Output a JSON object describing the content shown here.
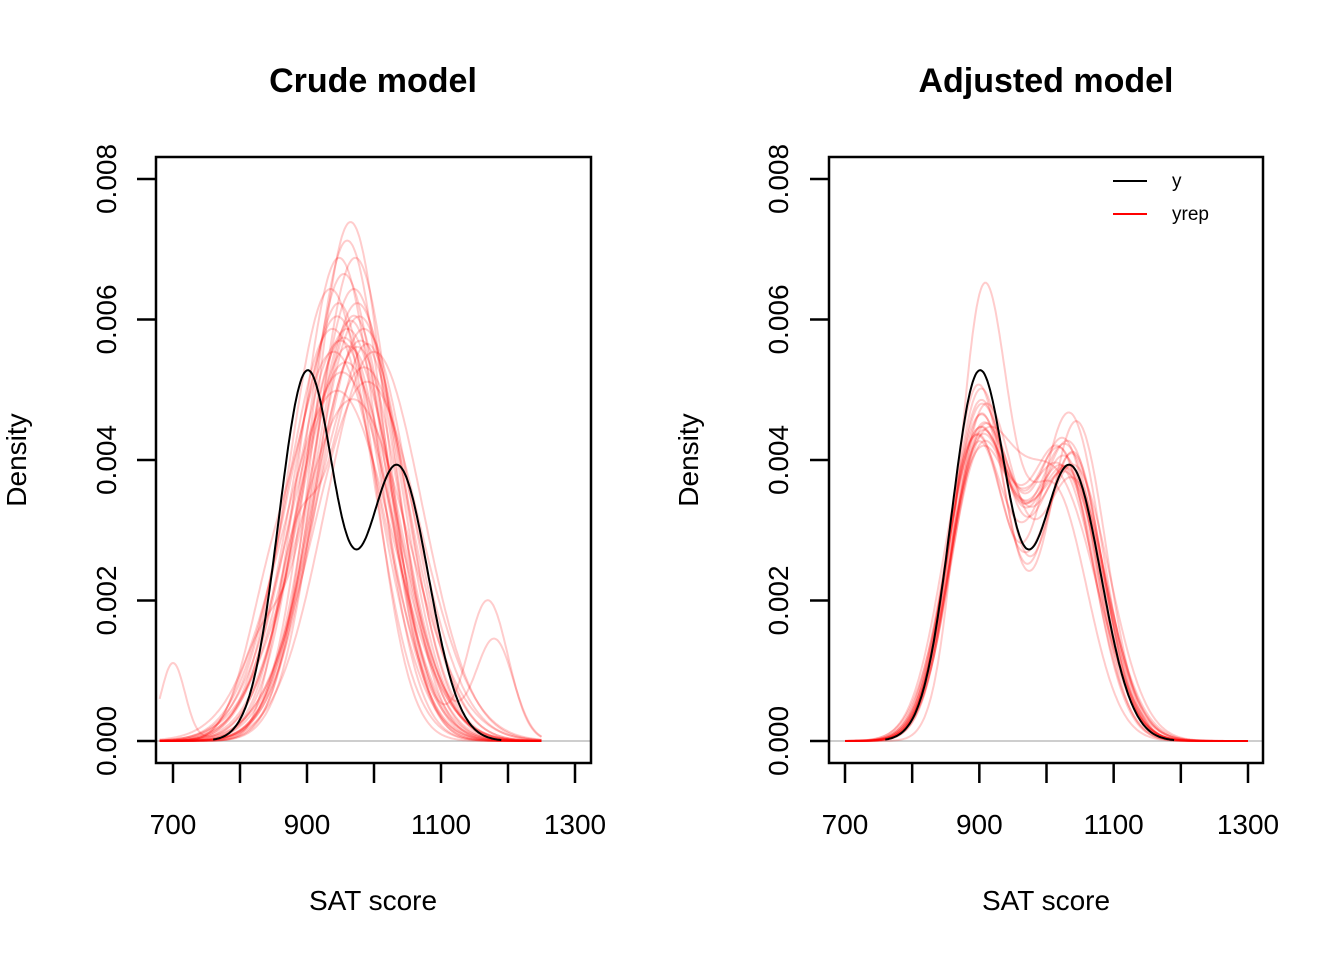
{
  "chart_data": [
    {
      "type": "line",
      "title": "Crude model",
      "xlabel": "SAT score",
      "ylabel": "Density",
      "xlim": [
        675,
        1325
      ],
      "ylim": [
        -0.00032,
        0.00831
      ],
      "xticks": [
        700,
        800,
        900,
        1000,
        1100,
        1200,
        1300
      ],
      "xtick_labels": [
        "700",
        "",
        "900",
        "",
        "1100",
        "",
        "1300"
      ],
      "yticks": [
        0.0,
        0.002,
        0.004,
        0.006,
        0.008
      ],
      "ytick_labels": [
        "0.000",
        "0.002",
        "0.004",
        "0.006",
        "0.008"
      ],
      "baseline": 0,
      "legend": null,
      "observed": {
        "name": "y",
        "color": "#000000",
        "x_range": [
          760,
          1190
        ],
        "components": [
          {
            "weight": 0.55,
            "mean": 900,
            "sd": 42
          },
          {
            "weight": 0.45,
            "mean": 1035,
            "sd": 46
          }
        ],
        "peaks": [
          {
            "x": 900,
            "density": 0.0052
          },
          {
            "x": 1033,
            "density": 0.0039
          }
        ],
        "trough": {
          "x": 973,
          "density": 0.0029
        }
      },
      "replicates": {
        "name": "yrep",
        "color": "#ff0000",
        "opacity": 0.2,
        "x_range": [
          680,
          1250
        ],
        "curves": [
          [
            {
              "w": 1,
              "m": 965,
              "s": 54
            }
          ],
          [
            {
              "w": 1,
              "m": 955,
              "s": 60
            }
          ],
          [
            {
              "w": 1,
              "m": 945,
              "s": 66
            }
          ],
          [
            {
              "w": 1,
              "m": 972,
              "s": 58
            }
          ],
          [
            {
              "w": 1,
              "m": 950,
              "s": 70
            }
          ],
          [
            {
              "w": 1,
              "m": 985,
              "s": 75
            }
          ],
          [
            {
              "w": 1,
              "m": 960,
              "s": 68
            }
          ],
          [
            {
              "w": 1,
              "m": 940,
              "s": 72
            }
          ],
          [
            {
              "w": 1,
              "m": 975,
              "s": 64
            }
          ],
          [
            {
              "w": 1,
              "m": 990,
              "s": 78
            }
          ],
          [
            {
              "w": 0.8,
              "m": 950,
              "s": 52
            },
            {
              "w": 0.2,
              "m": 850,
              "s": 40
            }
          ],
          [
            {
              "w": 0.85,
              "m": 970,
              "s": 56
            },
            {
              "w": 0.15,
              "m": 1170,
              "s": 30
            }
          ],
          [
            {
              "w": 1,
              "m": 958,
              "s": 74
            }
          ],
          [
            {
              "w": 1,
              "m": 935,
              "s": 62
            }
          ],
          [
            {
              "w": 1,
              "m": 980,
              "s": 70
            }
          ],
          [
            {
              "w": 0.9,
              "m": 965,
              "s": 60
            },
            {
              "w": 0.1,
              "m": 830,
              "s": 35
            }
          ],
          [
            {
              "w": 1,
              "m": 945,
              "s": 80
            }
          ],
          [
            {
              "w": 1,
              "m": 1000,
              "s": 72
            }
          ],
          [
            {
              "w": 1,
              "m": 968,
              "s": 82
            }
          ],
          [
            {
              "w": 0.95,
              "m": 955,
              "s": 66
            },
            {
              "w": 0.05,
              "m": 700,
              "s": 18
            }
          ],
          [
            {
              "w": 1,
              "m": 962,
              "s": 71
            }
          ],
          [
            {
              "w": 1,
              "m": 948,
              "s": 58
            }
          ],
          [
            {
              "w": 1,
              "m": 978,
              "s": 66
            }
          ],
          [
            {
              "w": 0.85,
              "m": 990,
              "s": 60
            },
            {
              "w": 0.15,
              "m": 880,
              "s": 30
            }
          ],
          [
            {
              "w": 1,
              "m": 952,
              "s": 76
            }
          ],
          [
            {
              "w": 1,
              "m": 970,
              "s": 62
            }
          ],
          [
            {
              "w": 1,
              "m": 938,
              "s": 68
            }
          ],
          [
            {
              "w": 0.9,
              "m": 975,
              "s": 64
            },
            {
              "w": 0.1,
              "m": 1180,
              "s": 28
            }
          ],
          [
            {
              "w": 1,
              "m": 960,
              "s": 56
            }
          ],
          [
            {
              "w": 1,
              "m": 985,
              "s": 68
            }
          ]
        ]
      }
    },
    {
      "type": "line",
      "title": "Adjusted model",
      "xlabel": "SAT score",
      "ylabel": "Density",
      "xlim": [
        675,
        1325
      ],
      "ylim": [
        -0.00032,
        0.00831
      ],
      "xticks": [
        700,
        800,
        900,
        1000,
        1100,
        1200,
        1300
      ],
      "xtick_labels": [
        "700",
        "",
        "900",
        "",
        "1100",
        "",
        "1300"
      ],
      "yticks": [
        0.0,
        0.002,
        0.004,
        0.006,
        0.008
      ],
      "ytick_labels": [
        "0.000",
        "0.002",
        "0.004",
        "0.006",
        "0.008"
      ],
      "baseline": 0,
      "legend": {
        "position": "top-right",
        "entries": [
          {
            "label": "y",
            "color": "#000000"
          },
          {
            "label": "yrep",
            "color": "#ff0000"
          }
        ]
      },
      "observed": {
        "name": "y",
        "color": "#000000",
        "x_range": [
          760,
          1190
        ],
        "components": [
          {
            "weight": 0.55,
            "mean": 900,
            "sd": 42
          },
          {
            "weight": 0.45,
            "mean": 1035,
            "sd": 46
          }
        ],
        "peaks": [
          {
            "x": 900,
            "density": 0.0052
          },
          {
            "x": 1033,
            "density": 0.0039
          }
        ],
        "trough": {
          "x": 973,
          "density": 0.0029
        }
      },
      "replicates": {
        "name": "yrep",
        "color": "#ff0000",
        "opacity": 0.2,
        "x_range": [
          700,
          1300
        ],
        "curves": [
          [
            {
              "w": 0.55,
              "m": 905,
              "s": 36
            },
            {
              "w": 0.45,
              "m": 1010,
              "s": 50
            }
          ],
          [
            {
              "w": 0.52,
              "m": 900,
              "s": 44
            },
            {
              "w": 0.48,
              "m": 1030,
              "s": 50
            }
          ],
          [
            {
              "w": 0.5,
              "m": 898,
              "s": 45
            },
            {
              "w": 0.5,
              "m": 1025,
              "s": 52
            }
          ],
          [
            {
              "w": 0.55,
              "m": 902,
              "s": 44
            },
            {
              "w": 0.45,
              "m": 1040,
              "s": 44
            }
          ],
          [
            {
              "w": 0.48,
              "m": 895,
              "s": 46
            },
            {
              "w": 0.52,
              "m": 1020,
              "s": 54
            }
          ],
          [
            {
              "w": 0.5,
              "m": 905,
              "s": 48
            },
            {
              "w": 0.5,
              "m": 1035,
              "s": 48
            }
          ],
          [
            {
              "w": 0.46,
              "m": 900,
              "s": 45
            },
            {
              "w": 0.54,
              "m": 1030,
              "s": 56
            }
          ],
          [
            {
              "w": 0.53,
              "m": 898,
              "s": 42
            },
            {
              "w": 0.47,
              "m": 1038,
              "s": 46
            }
          ],
          [
            {
              "w": 0.5,
              "m": 893,
              "s": 47
            },
            {
              "w": 0.5,
              "m": 1028,
              "s": 50
            }
          ],
          [
            {
              "w": 0.45,
              "m": 900,
              "s": 48
            },
            {
              "w": 0.55,
              "m": 1015,
              "s": 60
            }
          ],
          [
            {
              "w": 0.5,
              "m": 903,
              "s": 43
            },
            {
              "w": 0.5,
              "m": 1045,
              "s": 44
            }
          ],
          [
            {
              "w": 0.54,
              "m": 908,
              "s": 46
            },
            {
              "w": 0.46,
              "m": 1040,
              "s": 50
            }
          ],
          [
            {
              "w": 0.49,
              "m": 897,
              "s": 46
            },
            {
              "w": 0.51,
              "m": 1020,
              "s": 50
            }
          ],
          [
            {
              "w": 0.5,
              "m": 900,
              "s": 50
            },
            {
              "w": 0.5,
              "m": 1032,
              "s": 54
            }
          ],
          [
            {
              "w": 0.44,
              "m": 898,
              "s": 42
            },
            {
              "w": 0.56,
              "m": 1034,
              "s": 48
            }
          ],
          [
            {
              "w": 0.52,
              "m": 904,
              "s": 47
            },
            {
              "w": 0.48,
              "m": 1028,
              "s": 46
            }
          ],
          [
            {
              "w": 0.47,
              "m": 895,
              "s": 44
            },
            {
              "w": 0.53,
              "m": 1040,
              "s": 54
            }
          ],
          [
            {
              "w": 0.51,
              "m": 900,
              "s": 44
            },
            {
              "w": 0.49,
              "m": 1022,
              "s": 48
            }
          ],
          [
            {
              "w": 0.5,
              "m": 906,
              "s": 46
            },
            {
              "w": 0.5,
              "m": 1036,
              "s": 52
            }
          ],
          [
            {
              "w": 0.48,
              "m": 902,
              "s": 45
            },
            {
              "w": 0.52,
              "m": 1030,
              "s": 50
            }
          ]
        ]
      }
    }
  ]
}
